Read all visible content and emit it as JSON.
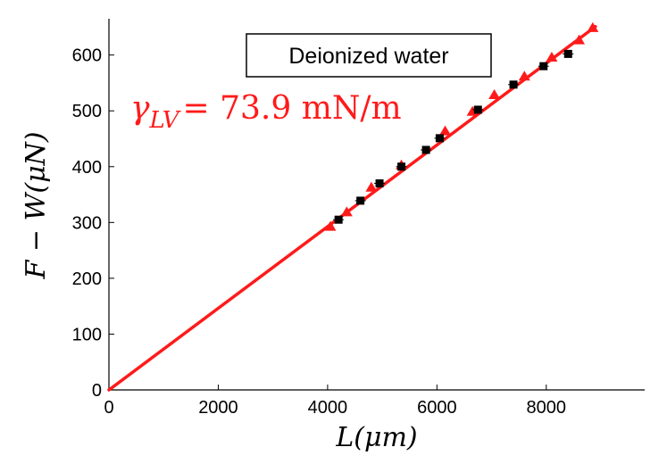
{
  "chart_data": {
    "type": "scatter",
    "title": "",
    "xlabel": "L(μm)",
    "ylabel": "F − W(μN)",
    "xlim": [
      0,
      9800
    ],
    "ylim": [
      0,
      665
    ],
    "x_ticks": [
      "0",
      "2000",
      "4000",
      "6000",
      "8000"
    ],
    "x_tick_values": [
      0,
      2000,
      4000,
      6000,
      8000
    ],
    "y_ticks": [
      "0",
      "100",
      "200",
      "300",
      "400",
      "500",
      "600"
    ],
    "y_tick_values": [
      0,
      100,
      200,
      300,
      400,
      500,
      600
    ],
    "legend_box": "Deionized water",
    "annotation": {
      "symbol": "γ",
      "subscript": "LV",
      "value_text": "= 73.9 mN/m",
      "color": "#ff1a1a"
    },
    "series": [
      {
        "name": "fit line",
        "kind": "line",
        "color": "#ff1a1a",
        "x": [
          0,
          8900
        ],
        "y": [
          0,
          651
        ]
      },
      {
        "name": "data (triangles)",
        "kind": "marker-triangle",
        "color": "#ff1a1a",
        "x": [
          4050,
          4350,
          4800,
          5350,
          6150,
          6650,
          7050,
          7600,
          8100,
          8600,
          8850
        ],
        "y": [
          294,
          320,
          364,
          404,
          465,
          500,
          530,
          563,
          597,
          628,
          650
        ]
      },
      {
        "name": "data (squares)",
        "kind": "marker-square",
        "color": "#000000",
        "x": [
          4200,
          4600,
          4950,
          5350,
          5800,
          6050,
          6750,
          7400,
          7950,
          8400
        ],
        "y": [
          305,
          339,
          370,
          400,
          430,
          451,
          502,
          547,
          580,
          602
        ]
      }
    ]
  }
}
